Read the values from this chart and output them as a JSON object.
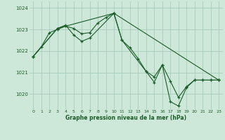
{
  "title": "Graphe pression niveau de la mer (hPa)",
  "bg_color": "#cde8d8",
  "grid_color": "#a8ccbc",
  "line_color": "#1a5c28",
  "marker": "+",
  "xlim": [
    -0.5,
    23.5
  ],
  "ylim": [
    1019.3,
    1024.3
  ],
  "xticks": [
    0,
    1,
    2,
    3,
    4,
    5,
    6,
    7,
    8,
    9,
    10,
    11,
    12,
    13,
    14,
    15,
    16,
    17,
    18,
    19,
    20,
    21,
    22,
    23
  ],
  "yticks": [
    1020,
    1021,
    1022,
    1023,
    1024
  ],
  "series": [
    {
      "x": [
        0,
        1,
        2,
        3,
        4,
        5,
        6,
        7,
        8,
        9,
        10,
        11,
        12,
        13,
        14,
        15,
        16,
        17,
        18,
        19,
        20,
        21,
        22,
        23
      ],
      "y": [
        1021.75,
        1022.2,
        1022.85,
        1023.0,
        1023.15,
        1023.05,
        1022.8,
        1022.85,
        1023.3,
        1023.55,
        1023.75,
        1022.5,
        1022.15,
        1021.65,
        1021.05,
        1020.8,
        1021.35,
        1020.6,
        1019.85,
        1020.35,
        1020.65,
        1020.65,
        1020.65,
        1020.65
      ]
    },
    {
      "x": [
        0,
        3,
        4,
        5,
        6,
        7,
        10,
        11,
        14,
        15,
        16,
        17,
        18,
        19,
        20,
        21,
        22,
        23
      ],
      "y": [
        1021.75,
        1023.05,
        1023.2,
        1022.75,
        1022.45,
        1022.6,
        1023.75,
        1022.5,
        1021.05,
        1020.55,
        1021.35,
        1019.65,
        1019.45,
        1020.3,
        1020.65,
        1020.65,
        1020.65,
        1020.65
      ]
    },
    {
      "x": [
        0,
        3,
        10,
        23
      ],
      "y": [
        1021.75,
        1023.05,
        1023.75,
        1020.65
      ]
    }
  ]
}
